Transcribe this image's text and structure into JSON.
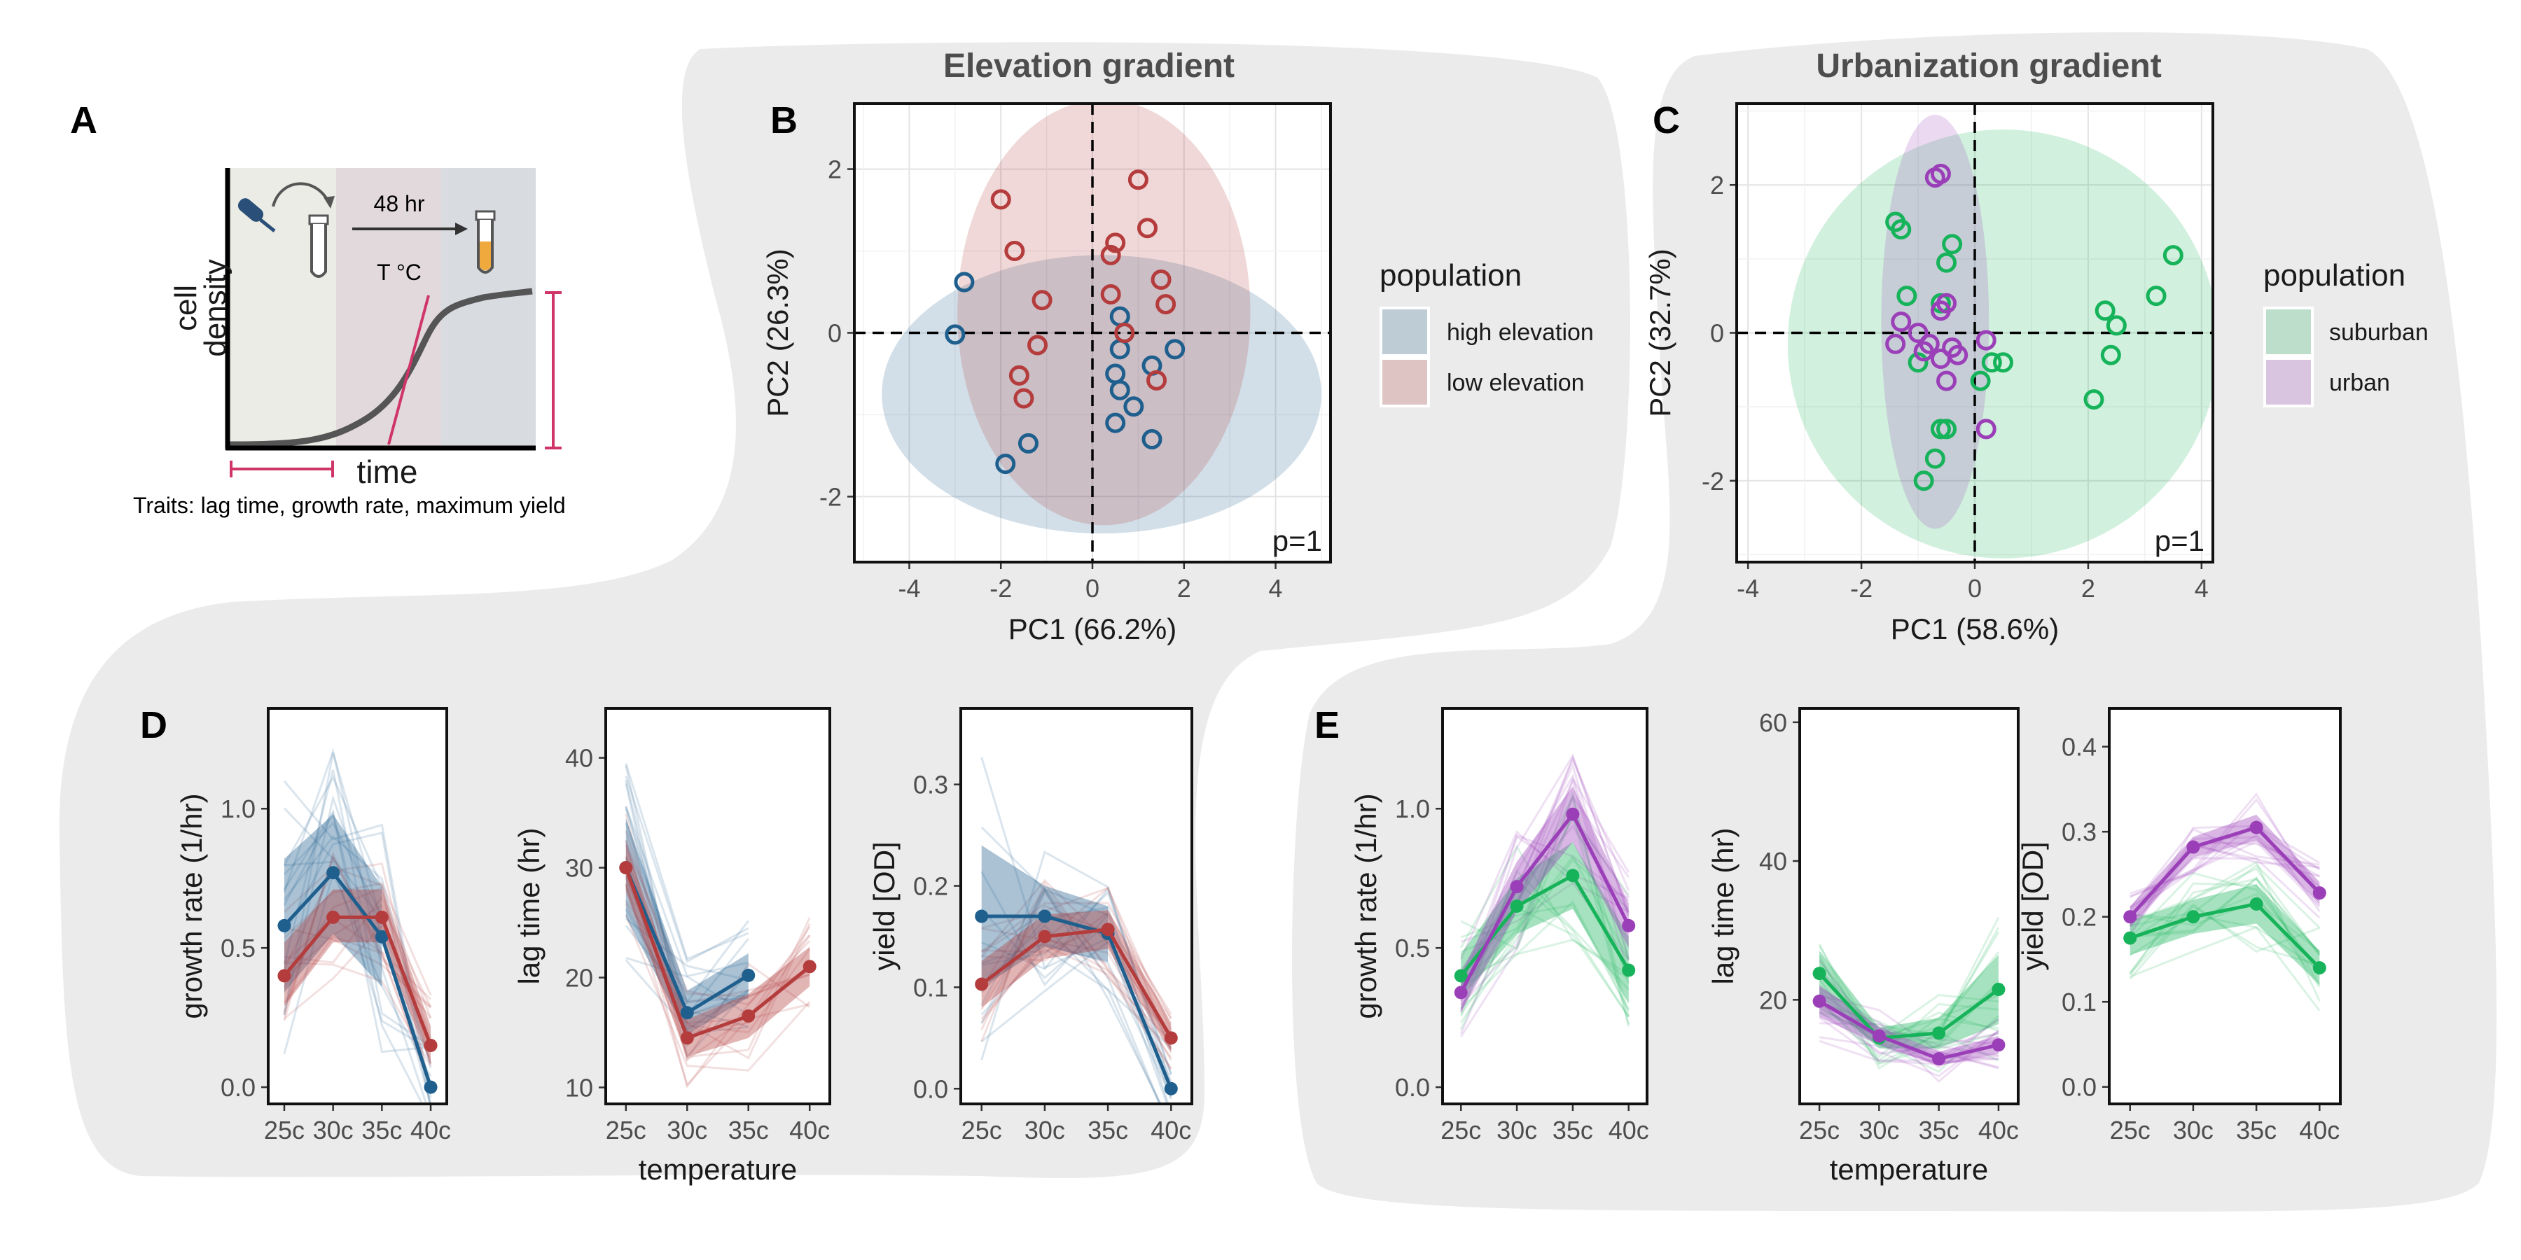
{
  "colors": {
    "high": "#1f5f8e",
    "low": "#b43c3c",
    "suburban": "#17b35a",
    "urban": "#9b3fb8",
    "blob": "#ebebeb",
    "grid": "#e3e3e3",
    "accent": "#cf3566"
  },
  "panelA": {
    "label": "A",
    "ylabel_line1": "cell",
    "ylabel_line2": "density",
    "xlabel": "time",
    "step1": "48 hr",
    "step2": "T °C",
    "traits": "Traits: lag time, growth rate, maximum yield"
  },
  "group_titles": {
    "elevation": "Elevation gradient",
    "urbanization": "Urbanization gradient"
  },
  "legends": {
    "elevation": {
      "title": "population",
      "items": [
        "high elevation",
        "low elevation"
      ]
    },
    "urbanization": {
      "title": "population",
      "items": [
        "suburban",
        "urban"
      ]
    }
  },
  "chart_data": [
    {
      "id": "B",
      "label": "B",
      "type": "scatter",
      "xlabel": "PC1 (66.2%)",
      "ylabel": "PC2 (26.3%)",
      "xlim": [
        -5.2,
        5.2
      ],
      "ylim": [
        -2.8,
        2.8
      ],
      "xticks": [
        -4,
        -2,
        0,
        2,
        4
      ],
      "yticks": [
        -2,
        0,
        2
      ],
      "annotation": "p=1",
      "series": [
        {
          "name": "high elevation",
          "color": "high",
          "ellipse": {
            "cx": 0.2,
            "cy": -0.75,
            "rx": 4.8,
            "ry": 1.7
          },
          "points": [
            [
              -2.8,
              0.62
            ],
            [
              -3.0,
              -0.02
            ],
            [
              -1.9,
              -1.6
            ],
            [
              -1.4,
              -1.35
            ],
            [
              0.6,
              0.2
            ],
            [
              0.6,
              -0.2
            ],
            [
              0.7,
              0.0
            ],
            [
              0.5,
              -0.5
            ],
            [
              0.6,
              -0.7
            ],
            [
              0.9,
              -0.9
            ],
            [
              0.5,
              -1.1
            ],
            [
              1.3,
              -0.4
            ],
            [
              1.8,
              -0.2
            ],
            [
              1.3,
              -1.3
            ]
          ]
        },
        {
          "name": "low elevation",
          "color": "low",
          "ellipse": {
            "cx": 0.25,
            "cy": 0.25,
            "rx": 3.2,
            "ry": 2.6
          },
          "points": [
            [
              -2.0,
              1.63
            ],
            [
              -1.7,
              1.0
            ],
            [
              -1.1,
              0.4
            ],
            [
              -1.2,
              -0.15
            ],
            [
              -1.6,
              -0.52
            ],
            [
              -1.5,
              -0.8
            ],
            [
              0.4,
              0.95
            ],
            [
              0.5,
              1.1
            ],
            [
              0.4,
              0.47
            ],
            [
              0.7,
              0.0
            ],
            [
              1.0,
              1.87
            ],
            [
              1.2,
              1.28
            ],
            [
              1.5,
              0.65
            ],
            [
              1.6,
              0.35
            ],
            [
              1.4,
              -0.58
            ]
          ]
        }
      ]
    },
    {
      "id": "C",
      "label": "C",
      "type": "scatter",
      "xlabel": "PC1 (58.6%)",
      "ylabel": "PC2 (32.7%)",
      "xlim": [
        -4.2,
        4.2
      ],
      "ylim": [
        -3.1,
        3.1
      ],
      "xticks": [
        -4,
        -2,
        0,
        2,
        4
      ],
      "yticks": [
        -2,
        0,
        2
      ],
      "annotation": "p=1",
      "series": [
        {
          "name": "suburban",
          "color": "suburban",
          "ellipse": {
            "cx": 0.5,
            "cy": -0.15,
            "rx": 3.8,
            "ry": 2.9
          },
          "points": [
            [
              -1.4,
              1.5
            ],
            [
              -1.3,
              1.4
            ],
            [
              -0.4,
              1.2
            ],
            [
              -0.5,
              0.95
            ],
            [
              -1.2,
              0.5
            ],
            [
              -0.6,
              0.4
            ],
            [
              -1.0,
              -0.4
            ],
            [
              -0.6,
              -1.3
            ],
            [
              -0.5,
              -1.3
            ],
            [
              -0.7,
              -1.7
            ],
            [
              -0.9,
              -2.0
            ],
            [
              0.3,
              -0.4
            ],
            [
              0.5,
              -0.4
            ],
            [
              0.1,
              -0.65
            ],
            [
              2.1,
              -0.9
            ],
            [
              2.3,
              0.3
            ],
            [
              2.4,
              -0.3
            ],
            [
              2.5,
              0.1
            ],
            [
              3.2,
              0.5
            ],
            [
              3.5,
              1.05
            ]
          ]
        },
        {
          "name": "urban",
          "color": "urban",
          "ellipse": {
            "cx": -0.7,
            "cy": 0.15,
            "rx": 0.95,
            "ry": 2.8
          },
          "points": [
            [
              -0.7,
              2.1
            ],
            [
              -0.6,
              2.15
            ],
            [
              -0.6,
              0.3
            ],
            [
              -0.5,
              0.4
            ],
            [
              -1.3,
              0.15
            ],
            [
              -1.0,
              0.0
            ],
            [
              -1.4,
              -0.15
            ],
            [
              -0.8,
              -0.15
            ],
            [
              -0.9,
              -0.25
            ],
            [
              -0.6,
              -0.35
            ],
            [
              -0.4,
              -0.2
            ],
            [
              -0.5,
              -0.65
            ],
            [
              -0.3,
              -0.3
            ],
            [
              0.2,
              -0.1
            ],
            [
              0.2,
              -1.3
            ]
          ]
        }
      ]
    },
    {
      "id": "D1",
      "label": "D",
      "type": "line",
      "ylabel": "growth rate (1/hr)",
      "xlabel": "",
      "categories": [
        "25c",
        "30c",
        "35c",
        "40c"
      ],
      "ylim": [
        -0.06,
        1.36
      ],
      "yticks": [
        0.0,
        0.5,
        1.0
      ],
      "tick_labels": [
        "0.0",
        "0.5",
        "1.0"
      ],
      "series": [
        {
          "name": "high elevation",
          "color": "high",
          "values": [
            0.58,
            0.77,
            0.54,
            0.0
          ],
          "lo": [
            0.34,
            0.55,
            0.36,
            null
          ],
          "hi": [
            0.82,
            0.98,
            0.72,
            null
          ]
        },
        {
          "name": "low elevation",
          "color": "low",
          "values": [
            0.4,
            0.61,
            0.61,
            0.15
          ],
          "lo": [
            0.29,
            0.52,
            0.52,
            0.08
          ],
          "hi": [
            0.52,
            0.71,
            0.71,
            0.22
          ]
        }
      ]
    },
    {
      "id": "D2",
      "type": "line",
      "ylabel": "lag time (hr)",
      "xlabel": "temperature",
      "categories": [
        "25c",
        "30c",
        "35c",
        "40c"
      ],
      "ylim": [
        8.5,
        44.5
      ],
      "yticks": [
        10,
        20,
        30,
        40
      ],
      "tick_labels": [
        "10",
        "20",
        "30",
        "40"
      ],
      "series": [
        {
          "name": "high elevation",
          "color": "high",
          "values": [
            30,
            16.8,
            20.2,
            null
          ],
          "lo": [
            25.5,
            14.8,
            18.2,
            null
          ],
          "hi": [
            34.5,
            18.8,
            22.2,
            null
          ]
        },
        {
          "name": "low elevation",
          "color": "low",
          "values": [
            30,
            14.5,
            16.5,
            21
          ],
          "lo": [
            27.8,
            12.8,
            14.5,
            19.2
          ],
          "hi": [
            32.2,
            16.2,
            18.5,
            22.8
          ]
        }
      ]
    },
    {
      "id": "D3",
      "type": "line",
      "ylabel": "yield [OD]",
      "xlabel": "",
      "categories": [
        "25c",
        "30c",
        "35c",
        "40c"
      ],
      "ylim": [
        -0.015,
        0.375
      ],
      "yticks": [
        0.0,
        0.1,
        0.2,
        0.3
      ],
      "tick_labels": [
        "0.0",
        "0.1",
        "0.2",
        "0.3"
      ],
      "series": [
        {
          "name": "high elevation",
          "color": "high",
          "values": [
            0.17,
            0.17,
            0.153,
            0.0
          ],
          "lo": [
            0.1,
            0.14,
            0.125,
            null
          ],
          "hi": [
            0.24,
            0.2,
            0.18,
            null
          ]
        },
        {
          "name": "low elevation",
          "color": "low",
          "values": [
            0.103,
            0.15,
            0.157,
            0.05
          ],
          "lo": [
            0.08,
            0.128,
            0.138,
            0.035
          ],
          "hi": [
            0.126,
            0.172,
            0.176,
            0.065
          ]
        }
      ]
    },
    {
      "id": "E1",
      "label": "E",
      "type": "line",
      "ylabel": "growth rate (1/hr)",
      "xlabel": "",
      "categories": [
        "25c",
        "30c",
        "35c",
        "40c"
      ],
      "ylim": [
        -0.06,
        1.36
      ],
      "yticks": [
        0.0,
        0.5,
        1.0
      ],
      "tick_labels": [
        "0.0",
        "0.5",
        "1.0"
      ],
      "series": [
        {
          "name": "suburban",
          "color": "suburban",
          "values": [
            0.4,
            0.65,
            0.76,
            0.42
          ],
          "lo": [
            0.32,
            0.55,
            0.64,
            0.3
          ],
          "hi": [
            0.48,
            0.75,
            0.88,
            0.54
          ]
        },
        {
          "name": "urban",
          "color": "urban",
          "values": [
            0.34,
            0.72,
            0.98,
            0.58
          ],
          "lo": [
            0.27,
            0.63,
            0.88,
            0.5
          ],
          "hi": [
            0.41,
            0.81,
            1.08,
            0.66
          ]
        }
      ]
    },
    {
      "id": "E2",
      "type": "line",
      "ylabel": "lag time (hr)",
      "xlabel": "temperature",
      "categories": [
        "25c",
        "30c",
        "35c",
        "40c"
      ],
      "ylim": [
        5,
        62
      ],
      "yticks": [
        20,
        40,
        60
      ],
      "tick_labels": [
        "20",
        "40",
        "60"
      ],
      "series": [
        {
          "name": "suburban",
          "color": "suburban",
          "values": [
            23.8,
            14.5,
            15.2,
            21.5
          ],
          "lo": [
            20.5,
            13,
            13,
            16.5
          ],
          "hi": [
            27.1,
            16,
            17.4,
            26.5
          ]
        },
        {
          "name": "urban",
          "color": "urban",
          "values": [
            19.8,
            14.8,
            11.5,
            13.5
          ],
          "lo": [
            17.5,
            13.5,
            10.5,
            12.2
          ],
          "hi": [
            22.1,
            16.1,
            12.5,
            14.8
          ]
        }
      ]
    },
    {
      "id": "E3",
      "type": "line",
      "ylabel": "yield [OD]",
      "xlabel": "",
      "categories": [
        "25c",
        "30c",
        "35c",
        "40c"
      ],
      "ylim": [
        -0.02,
        0.445
      ],
      "yticks": [
        0.0,
        0.1,
        0.2,
        0.3,
        0.4
      ],
      "tick_labels": [
        "0.0",
        "0.1",
        "0.2",
        "0.3",
        "0.4"
      ],
      "series": [
        {
          "name": "suburban",
          "color": "suburban",
          "values": [
            0.175,
            0.2,
            0.215,
            0.14
          ],
          "lo": [
            0.155,
            0.18,
            0.192,
            0.12
          ],
          "hi": [
            0.195,
            0.22,
            0.238,
            0.16
          ]
        },
        {
          "name": "urban",
          "color": "urban",
          "values": [
            0.2,
            0.282,
            0.305,
            0.228
          ],
          "lo": [
            0.188,
            0.27,
            0.29,
            0.215
          ],
          "hi": [
            0.212,
            0.294,
            0.32,
            0.241
          ]
        }
      ]
    }
  ]
}
